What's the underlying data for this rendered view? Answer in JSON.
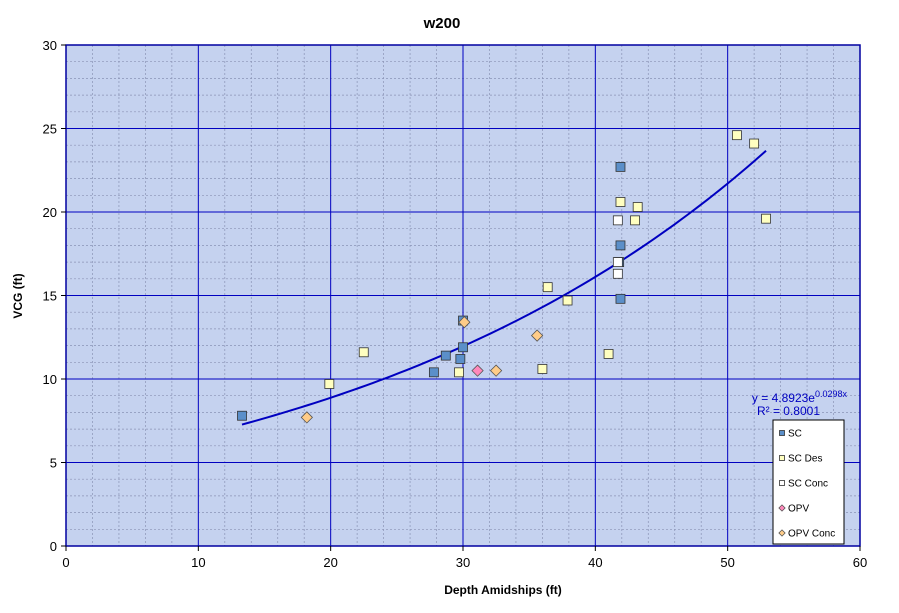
{
  "chart_data": {
    "type": "scatter",
    "title": "w200",
    "xlabel": "Depth Amidships  (ft)",
    "ylabel": "VCG (ft)",
    "xlim": [
      0,
      60
    ],
    "ylim": [
      0,
      30
    ],
    "xticks": [
      0,
      10,
      20,
      30,
      40,
      50,
      60
    ],
    "yticks": [
      0,
      5,
      10,
      15,
      20,
      25,
      30
    ],
    "minor_grid_step": 2,
    "grid": true,
    "plot_background": "#c5d2ef",
    "grid_color": "#0000c0",
    "legend_position": "bottom-right",
    "series": [
      {
        "name": "SC",
        "marker": "square",
        "color": "#5b8fc9",
        "points": [
          [
            13.3,
            7.8
          ],
          [
            27.8,
            10.4
          ],
          [
            28.7,
            11.4
          ],
          [
            29.8,
            11.2
          ],
          [
            30.0,
            11.9
          ],
          [
            30.0,
            13.5
          ],
          [
            41.8,
            17.0
          ],
          [
            41.9,
            18.0
          ],
          [
            41.9,
            14.8
          ],
          [
            41.9,
            22.7
          ]
        ]
      },
      {
        "name": "SC Des",
        "marker": "square",
        "color": "#ffffc0",
        "points": [
          [
            19.9,
            9.7
          ],
          [
            22.5,
            11.6
          ],
          [
            29.7,
            10.4
          ],
          [
            36.0,
            10.6
          ],
          [
            36.4,
            15.5
          ],
          [
            37.9,
            14.7
          ],
          [
            41.0,
            11.5
          ],
          [
            41.9,
            20.6
          ],
          [
            43.0,
            19.5
          ],
          [
            43.2,
            20.3
          ],
          [
            50.7,
            24.6
          ],
          [
            52.0,
            24.1
          ],
          [
            52.9,
            19.6
          ]
        ]
      },
      {
        "name": "SC Conc",
        "marker": "square",
        "color": "#ffffff",
        "points": [
          [
            41.7,
            19.5
          ],
          [
            41.7,
            17.0
          ],
          [
            41.7,
            16.3
          ]
        ]
      },
      {
        "name": "OPV",
        "marker": "diamond",
        "color": "#ff88bb",
        "points": [
          [
            31.1,
            10.5
          ]
        ]
      },
      {
        "name": "OPV Conc",
        "marker": "diamond",
        "color": "#ffcc88",
        "points": [
          [
            18.2,
            7.7
          ],
          [
            30.1,
            13.4
          ],
          [
            32.5,
            10.5
          ],
          [
            35.6,
            12.6
          ]
        ]
      }
    ],
    "trendline": {
      "type": "exponential",
      "a": 4.8923,
      "b": 0.0298,
      "x_range": [
        13.3,
        52.9
      ],
      "color": "#0000c0",
      "equation_prefix": "y = 4.8923e",
      "equation_exponent": "0.0298x",
      "r_squared_label": "R² = 0.8001"
    }
  }
}
